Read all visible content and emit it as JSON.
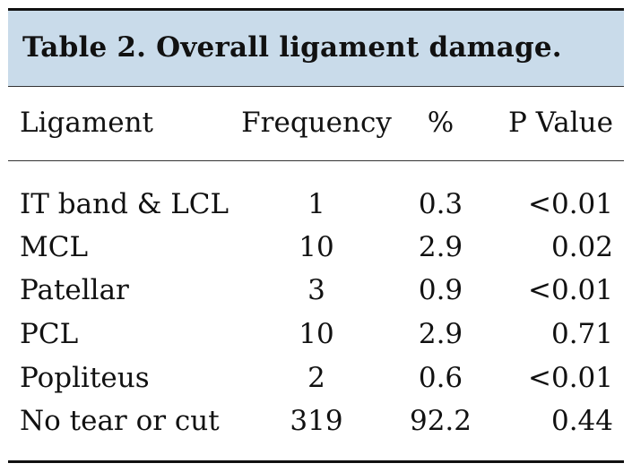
{
  "table": {
    "caption": "Table 2.  Overall ligament damage.",
    "headers": {
      "ligament": "Ligament",
      "frequency": "Frequency",
      "percent": "%",
      "p_value": "P Value"
    },
    "rows": [
      {
        "ligament": "IT band & LCL",
        "frequency": "1",
        "percent": "0.3",
        "p_value": "<0.01"
      },
      {
        "ligament": "MCL",
        "frequency": "10",
        "percent": "2.9",
        "p_value": "0.02"
      },
      {
        "ligament": "Patellar",
        "frequency": "3",
        "percent": "0.9",
        "p_value": "<0.01"
      },
      {
        "ligament": "PCL",
        "frequency": "10",
        "percent": "2.9",
        "p_value": "0.71"
      },
      {
        "ligament": "Popliteus",
        "frequency": "2",
        "percent": "0.6",
        "p_value": "<0.01"
      },
      {
        "ligament": "No tear or cut",
        "frequency": "319",
        "percent": "92.2",
        "p_value": "0.44"
      }
    ]
  }
}
